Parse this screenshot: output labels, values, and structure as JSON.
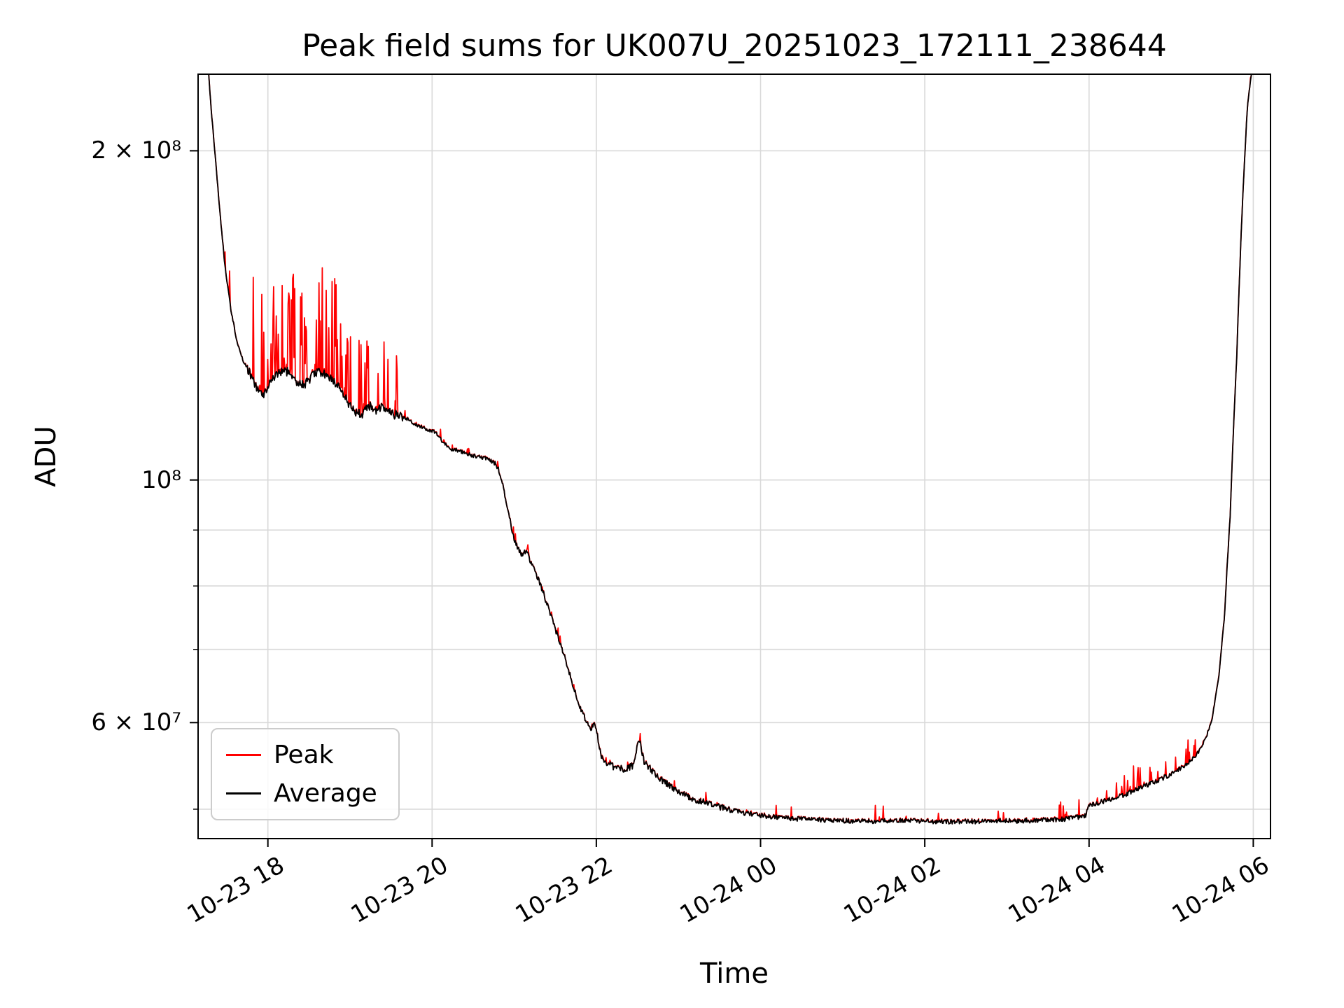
{
  "chart_data": {
    "type": "line",
    "title": "Peak field sums for UK007U_20251023_172111_238644",
    "xlabel": "Time",
    "ylabel": "ADU",
    "yscale": "log",
    "xlim": [
      17.15,
      30.21
    ],
    "ylim": [
      47000000.0,
      235000000.0
    ],
    "grid": true,
    "grid_color": "#d9d9d9",
    "axis_color": "#000000",
    "background": "#ffffff",
    "xticks": [
      {
        "value": 18,
        "label": "10-23 18"
      },
      {
        "value": 20,
        "label": "10-23 20"
      },
      {
        "value": 22,
        "label": "10-23 22"
      },
      {
        "value": 24,
        "label": "10-24 00"
      },
      {
        "value": 26,
        "label": "10-24 02"
      },
      {
        "value": 28,
        "label": "10-24 04"
      },
      {
        "value": 30,
        "label": "10-24 06"
      }
    ],
    "yticks_major": [
      {
        "value": 200000000.0,
        "label": "2 × 10⁸"
      },
      {
        "value": 100000000.0,
        "label": "10⁸"
      },
      {
        "value": 60000000.0,
        "label": "6 × 10⁷"
      }
    ],
    "yticks_minor": [
      50000000.0,
      60000000.0,
      70000000.0,
      80000000.0,
      90000000.0,
      100000000.0,
      200000000.0
    ],
    "legend": {
      "position": "lower left",
      "items": [
        "Peak",
        "Average"
      ]
    },
    "series": [
      {
        "name": "Peak",
        "color": "#ff0000",
        "role": "peak"
      },
      {
        "name": "Average",
        "color": "#000000",
        "role": "average"
      }
    ],
    "average_anchors": [
      [
        17.15,
        245000000.0
      ],
      [
        17.27,
        240000000.0
      ],
      [
        17.31,
        218000000.0
      ],
      [
        17.36,
        197000000.0
      ],
      [
        17.42,
        174000000.0
      ],
      [
        17.48,
        156000000.0
      ],
      [
        17.55,
        143000000.0
      ],
      [
        17.62,
        134000000.0
      ],
      [
        17.7,
        128500000.0
      ],
      [
        17.78,
        125000000.0
      ],
      [
        17.86,
        121500000.0
      ],
      [
        17.95,
        120000000.0
      ],
      [
        18.03,
        122500000.0
      ],
      [
        18.12,
        125000000.0
      ],
      [
        18.2,
        126200000.0
      ],
      [
        18.28,
        124800000.0
      ],
      [
        18.36,
        122800000.0
      ],
      [
        18.45,
        122500000.0
      ],
      [
        18.55,
        124500000.0
      ],
      [
        18.63,
        125600000.0
      ],
      [
        18.72,
        124700000.0
      ],
      [
        18.8,
        122800000.0
      ],
      [
        18.88,
        121200000.0
      ],
      [
        18.97,
        117800000.0
      ],
      [
        19.05,
        115600000.0
      ],
      [
        19.15,
        115000000.0
      ],
      [
        19.23,
        117000000.0
      ],
      [
        19.3,
        115600000.0
      ],
      [
        19.38,
        116500000.0
      ],
      [
        19.47,
        115200000.0
      ],
      [
        19.58,
        114600000.0
      ],
      [
        19.7,
        113600000.0
      ],
      [
        19.82,
        112200000.0
      ],
      [
        19.93,
        111200000.0
      ],
      [
        20.05,
        110500000.0
      ],
      [
        20.12,
        108500000.0
      ],
      [
        20.22,
        106800000.0
      ],
      [
        20.35,
        106200000.0
      ],
      [
        20.5,
        105200000.0
      ],
      [
        20.63,
        104800000.0
      ],
      [
        20.78,
        103500000.0
      ],
      [
        20.85,
        100000000.0
      ],
      [
        20.92,
        94000000.0
      ],
      [
        21.0,
        88000000.0
      ],
      [
        21.08,
        85500000.0
      ],
      [
        21.15,
        86000000.0
      ],
      [
        21.22,
        83500000.0
      ],
      [
        21.3,
        81000000.0
      ],
      [
        21.4,
        77000000.0
      ],
      [
        21.5,
        73000000.0
      ],
      [
        21.6,
        69500000.0
      ],
      [
        21.7,
        65500000.0
      ],
      [
        21.8,
        62000000.0
      ],
      [
        21.88,
        60000000.0
      ],
      [
        21.94,
        59200000.0
      ],
      [
        21.98,
        60200000.0
      ],
      [
        22.05,
        56200000.0
      ],
      [
        22.12,
        55200000.0
      ],
      [
        22.22,
        54600000.0
      ],
      [
        22.34,
        54400000.0
      ],
      [
        22.45,
        54800000.0
      ],
      [
        22.52,
        58000000.0
      ],
      [
        22.58,
        55200000.0
      ],
      [
        22.68,
        54200000.0
      ],
      [
        22.82,
        53000000.0
      ],
      [
        22.98,
        52000000.0
      ],
      [
        23.15,
        51200000.0
      ],
      [
        23.35,
        50600000.0
      ],
      [
        23.55,
        50100000.0
      ],
      [
        23.8,
        49600000.0
      ],
      [
        24.05,
        49300000.0
      ],
      [
        24.4,
        49000000.0
      ],
      [
        24.8,
        48850000.0
      ],
      [
        25.3,
        48750000.0
      ],
      [
        25.8,
        48820000.0
      ],
      [
        26.3,
        48680000.0
      ],
      [
        26.8,
        48750000.0
      ],
      [
        27.3,
        48820000.0
      ],
      [
        27.7,
        48950000.0
      ],
      [
        27.96,
        49300000.0
      ],
      [
        28.0,
        50400000.0
      ],
      [
        28.2,
        50900000.0
      ],
      [
        28.45,
        51600000.0
      ],
      [
        28.7,
        52600000.0
      ],
      [
        28.95,
        53600000.0
      ],
      [
        29.15,
        54700000.0
      ],
      [
        29.3,
        56000000.0
      ],
      [
        29.42,
        57800000.0
      ],
      [
        29.5,
        60500000.0
      ],
      [
        29.58,
        66000000.0
      ],
      [
        29.65,
        75000000.0
      ],
      [
        29.72,
        93000000.0
      ],
      [
        29.8,
        130000000.0
      ],
      [
        29.87,
        180000000.0
      ],
      [
        29.93,
        220000000.0
      ],
      [
        29.98,
        236000000.0
      ],
      [
        30.05,
        243000000.0
      ],
      [
        30.21,
        245000000.0
      ]
    ],
    "noise_segments": [
      {
        "from": 17.15,
        "to": 17.75,
        "amp": 0.003
      },
      {
        "from": 17.75,
        "to": 19.65,
        "amp": 0.01
      },
      {
        "from": 19.65,
        "to": 20.75,
        "amp": 0.004
      },
      {
        "from": 20.75,
        "to": 22.05,
        "amp": 0.006
      },
      {
        "from": 22.05,
        "to": 23.7,
        "amp": 0.007
      },
      {
        "from": 23.7,
        "to": 27.98,
        "amp": 0.005
      },
      {
        "from": 27.98,
        "to": 29.45,
        "amp": 0.005
      },
      {
        "from": 29.45,
        "to": 30.21,
        "amp": 0.0015
      }
    ],
    "spike_segments": [
      {
        "from": 17.36,
        "to": 17.58,
        "prob": 0.1,
        "max": 0.1
      },
      {
        "from": 17.75,
        "to": 18.95,
        "prob": 0.42,
        "max": 0.26
      },
      {
        "from": 18.95,
        "to": 19.62,
        "prob": 0.32,
        "max": 0.17
      },
      {
        "from": 19.62,
        "to": 20.75,
        "prob": 0.1,
        "max": 0.02
      },
      {
        "from": 20.75,
        "to": 23.0,
        "prob": 0.08,
        "max": 0.018
      },
      {
        "from": 23.0,
        "to": 27.98,
        "prob": 0.05,
        "max": 0.045
      },
      {
        "from": 27.98,
        "to": 29.35,
        "prob": 0.22,
        "max": 0.055
      },
      {
        "from": 29.35,
        "to": 30.21,
        "prob": 0.05,
        "max": 0.008
      }
    ],
    "sample_step_hours": 0.008,
    "random_seed": 42
  }
}
